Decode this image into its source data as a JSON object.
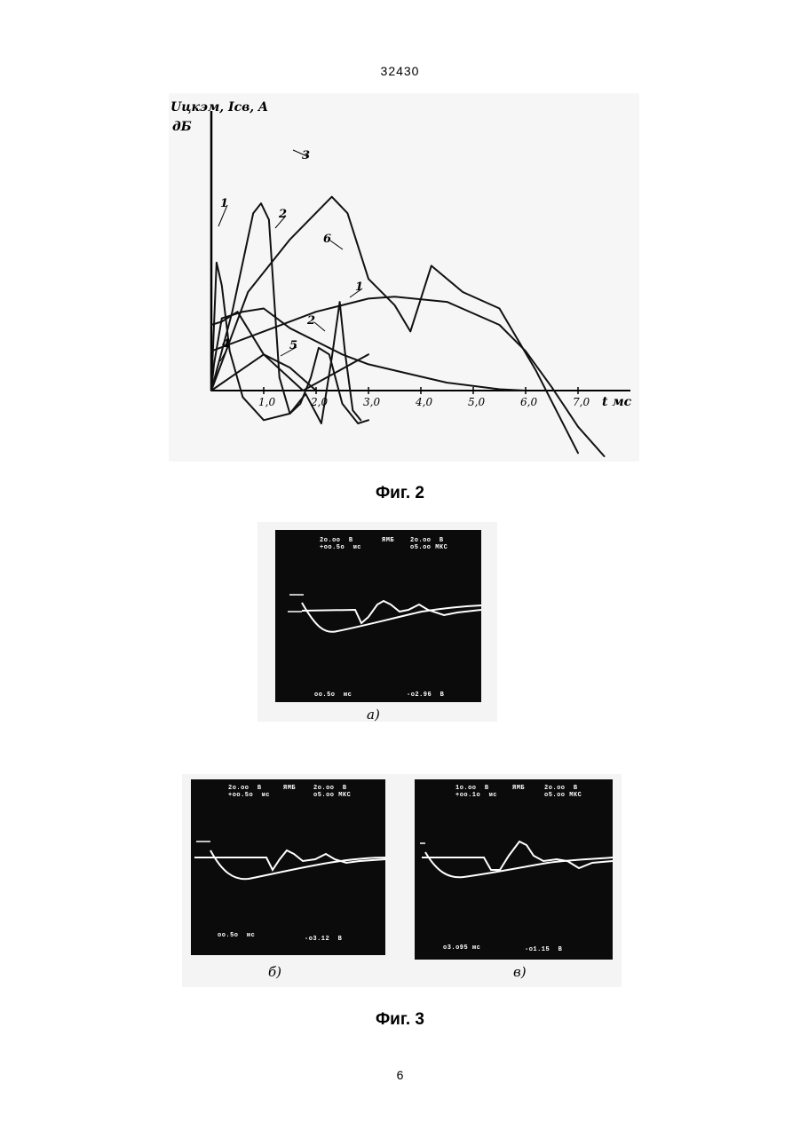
{
  "page": {
    "header": "32430",
    "number": "6"
  },
  "fig2": {
    "caption": "Фиг. 2",
    "chart_data": {
      "type": "line",
      "ylabel_line1": "Uцкэм, Iсв, A",
      "ylabel_line2": "дБ",
      "xlabel": "t мс",
      "x_ticks": [
        "1,0",
        "2,0",
        "3,0",
        "4,0",
        "5,0",
        "6,0",
        "7,0"
      ],
      "x_tick_values": [
        1.0,
        2.0,
        3.0,
        4.0,
        5.0,
        6.0,
        7.0
      ],
      "xlim": [
        0,
        8
      ],
      "curve_labels": [
        "1",
        "2",
        "3",
        "6",
        "1",
        "2",
        "4",
        "5"
      ],
      "series": [
        {
          "name": "1",
          "x": [
            0,
            0.1,
            0.2,
            0.35,
            0.6,
            1.0,
            1.5,
            1.8,
            2.1,
            2.3,
            2.45,
            2.55,
            2.7,
            2.85
          ],
          "y": [
            0,
            1.95,
            1.6,
            0.6,
            -0.1,
            -0.45,
            -0.35,
            -0.05,
            -0.5,
            0.5,
            1.35,
            0.6,
            -0.3,
            -0.45
          ]
        },
        {
          "name": "2",
          "x": [
            0,
            0.4,
            0.8,
            0.95,
            1.1,
            1.3,
            1.5,
            1.7,
            1.9,
            2.05,
            2.25,
            2.5,
            2.8,
            3.0
          ],
          "y": [
            0,
            1.2,
            2.7,
            2.85,
            2.6,
            0.2,
            -0.35,
            -0.2,
            0.2,
            0.65,
            0.55,
            -0.2,
            -0.5,
            -0.45
          ]
        },
        {
          "name": "3",
          "x": [
            0,
            0.7,
            1.5,
            2.3,
            2.6,
            3.0,
            3.5,
            3.8,
            4.2,
            4.8,
            5.5,
            6.2,
            7.0
          ],
          "y": [
            0,
            1.5,
            2.3,
            2.95,
            2.7,
            1.7,
            1.3,
            0.9,
            1.9,
            1.5,
            1.25,
            0.3,
            -0.95
          ]
        },
        {
          "name": "6",
          "x": [
            0,
            0.5,
            1.0,
            2.0,
            3.0,
            3.5,
            4.5,
            5.5,
            6.0,
            6.5,
            7.0,
            7.5
          ],
          "y": [
            0.6,
            0.75,
            0.9,
            1.2,
            1.4,
            1.43,
            1.35,
            1.0,
            0.6,
            0.05,
            -0.55,
            -1.0
          ]
        },
        {
          "name": "4",
          "x": [
            0,
            0.05,
            0.2,
            0.6,
            1.0,
            1.5,
            2.0,
            2.5,
            3.0,
            3.8,
            4.5,
            5.5,
            6.0
          ],
          "y": [
            0,
            0.4,
            1.1,
            1.2,
            1.25,
            0.95,
            0.75,
            0.55,
            0.4,
            0.25,
            0.12,
            0.02,
            0.0
          ]
        },
        {
          "name": "5",
          "x": [
            0,
            1.0,
            1.75,
            3.0
          ],
          "y": [
            0,
            0.55,
            0.0,
            0.55
          ]
        },
        {
          "name": "",
          "x": [
            0.0,
            0.2,
            0.5,
            1.0,
            1.5,
            2.0
          ],
          "y": [
            1.0,
            1.05,
            1.2,
            0.55,
            0.35,
            0.0
          ]
        }
      ]
    }
  },
  "fig3": {
    "caption": "Фиг. 3",
    "panels": [
      {
        "label": "а)",
        "top_left": "2о.оо  В\n+оо.5о  мс",
        "top_mid": "ЯМБ",
        "top_right": "2о.оо  В\nо5.оо МКС",
        "bottom_left": "оо.5о  мс",
        "bottom_right": "-о2.96  В"
      },
      {
        "label": "б)",
        "top_left": "2о.оо  В\n+оо.5о  мс",
        "top_mid": "ЯМБ",
        "top_right": "2о.оо  В\nо5.оо МКС",
        "bottom_left": "оо.5о  мс",
        "bottom_right": "-о3.12  В"
      },
      {
        "label": "в)",
        "top_left": "1о.оо  В\n+оо.1о  мс",
        "top_mid": "ЯМБ",
        "top_right": "2о.оо  В\nо5.оо МКС",
        "bottom_left": "о3.о95 мс",
        "bottom_right": "-о1.15  В"
      }
    ]
  }
}
